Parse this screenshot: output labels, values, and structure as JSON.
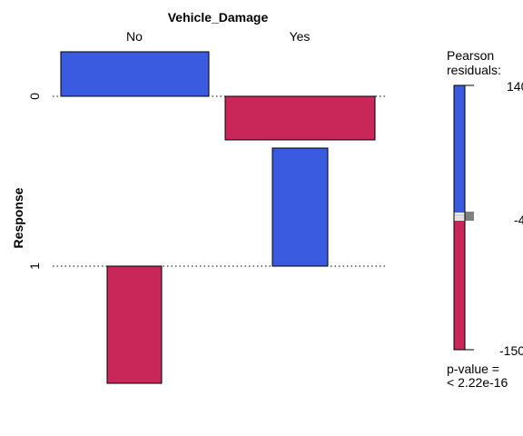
{
  "chart_data": {
    "type": "assoc",
    "title": "Vehicle_Damage",
    "xlabel": "Vehicle_Damage",
    "ylabel": "Response",
    "x_categories": [
      "No",
      "Yes"
    ],
    "y_categories": [
      "0",
      "1"
    ],
    "cells": [
      {
        "x": "No",
        "y": "0",
        "residual": 140
      },
      {
        "x": "Yes",
        "y": "0",
        "residual": -150
      },
      {
        "x": "No",
        "y": "1",
        "residual": -150
      },
      {
        "x": "Yes",
        "y": "1",
        "residual": 140
      }
    ],
    "legend": {
      "title_line1": "Pearson",
      "title_line2": "residuals:",
      "max_label": "140",
      "mid_label": "-4",
      "min_label": "-150",
      "max": 140,
      "min": -150,
      "mid": -4
    },
    "p_value_line1": "p-value =",
    "p_value_line2": "< 2.22e-16",
    "colors": {
      "positive": "#3a5be0",
      "negative": "#c9275a",
      "neutral": "#e8e8e8",
      "outline": "#000000"
    }
  }
}
